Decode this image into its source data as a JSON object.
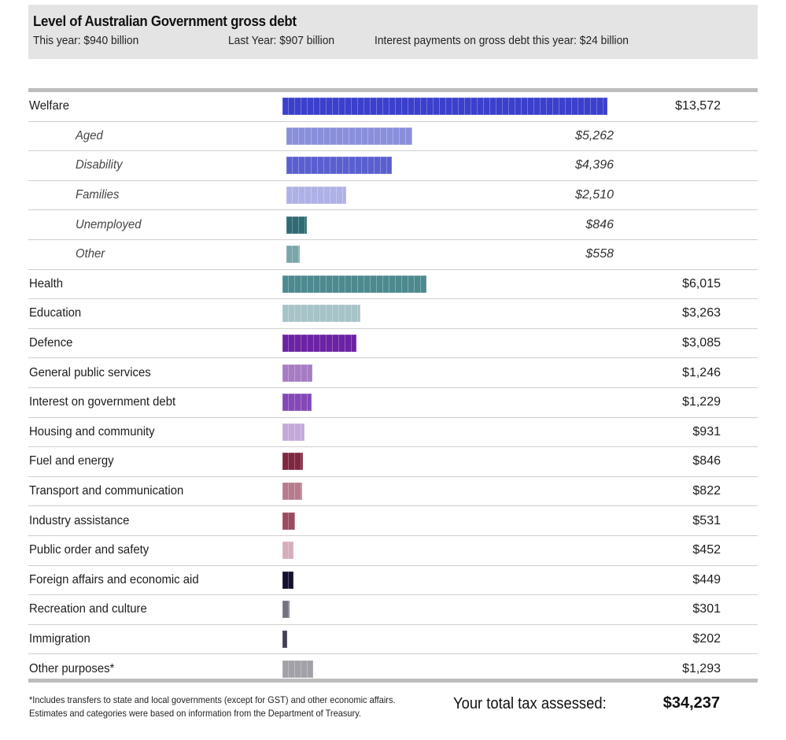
{
  "header": {
    "title": "Level of Australian Government gross debt",
    "this_year": "This year: $940 billion",
    "last_year": "Last Year: $907 billion",
    "interest": "Interest payments on gross debt this year: $24 billion"
  },
  "chart_data": {
    "type": "bar",
    "orientation": "horizontal",
    "title": "Level of Australian Government gross debt",
    "xlabel": "",
    "ylabel": "",
    "currency": "$",
    "max_value": 13572,
    "rows": [
      {
        "label": "Welfare",
        "value": 13572,
        "display": "$13,572",
        "level": "main",
        "color": "#3a3fcc"
      },
      {
        "label": "Aged",
        "value": 5262,
        "display": "$5,262",
        "level": "sub",
        "color": "#8a8fdc"
      },
      {
        "label": "Disability",
        "value": 4396,
        "display": "$4,396",
        "level": "sub",
        "color": "#5a5fd0"
      },
      {
        "label": "Families",
        "value": 2510,
        "display": "$2,510",
        "level": "sub",
        "color": "#aeb1e6"
      },
      {
        "label": "Unemployed",
        "value": 846,
        "display": "$846",
        "level": "sub",
        "color": "#2f6b73"
      },
      {
        "label": "Other",
        "value": 558,
        "display": "$558",
        "level": "sub",
        "color": "#7aa5ab"
      },
      {
        "label": "Health",
        "value": 6015,
        "display": "$6,015",
        "level": "main",
        "color": "#4d8a90"
      },
      {
        "label": "Education",
        "value": 3263,
        "display": "$3,263",
        "level": "main",
        "color": "#a6c3c8"
      },
      {
        "label": "Defence",
        "value": 3085,
        "display": "$3,085",
        "level": "main",
        "color": "#6c22a4"
      },
      {
        "label": "General public services",
        "value": 1246,
        "display": "$1,246",
        "level": "main",
        "color": "#a77cc4"
      },
      {
        "label": "Interest on government debt",
        "value": 1229,
        "display": "$1,229",
        "level": "main",
        "color": "#8548b8"
      },
      {
        "label": "Housing and community",
        "value": 931,
        "display": "$931",
        "level": "main",
        "color": "#c4a8da"
      },
      {
        "label": "Fuel and energy",
        "value": 846,
        "display": "$846",
        "level": "main",
        "color": "#7f2640"
      },
      {
        "label": "Transport and communication",
        "value": 822,
        "display": "$822",
        "level": "main",
        "color": "#b87b8e"
      },
      {
        "label": "Industry assistance",
        "value": 531,
        "display": "$531",
        "level": "main",
        "color": "#9b4a62"
      },
      {
        "label": "Public order and safety",
        "value": 452,
        "display": "$452",
        "level": "main",
        "color": "#d6adba"
      },
      {
        "label": "Foreign affairs and economic aid",
        "value": 449,
        "display": "$449",
        "level": "main",
        "color": "#15102e"
      },
      {
        "label": "Recreation and culture",
        "value": 301,
        "display": "$301",
        "level": "main",
        "color": "#74717f"
      },
      {
        "label": "Immigration",
        "value": 202,
        "display": "$202",
        "level": "main",
        "color": "#433f55"
      },
      {
        "label": "Other purposes*",
        "value": 1293,
        "display": "$1,293",
        "level": "main",
        "color": "#a3a1a8"
      }
    ]
  },
  "footer": {
    "footnote_line1": "*Includes transfers to state and local governments (except for GST) and other economic affairs.",
    "footnote_line2": "Estimates and categories were based on information from the Department of Treasury.",
    "total_label": "Your total tax assessed:",
    "total_value": "$34,237"
  }
}
